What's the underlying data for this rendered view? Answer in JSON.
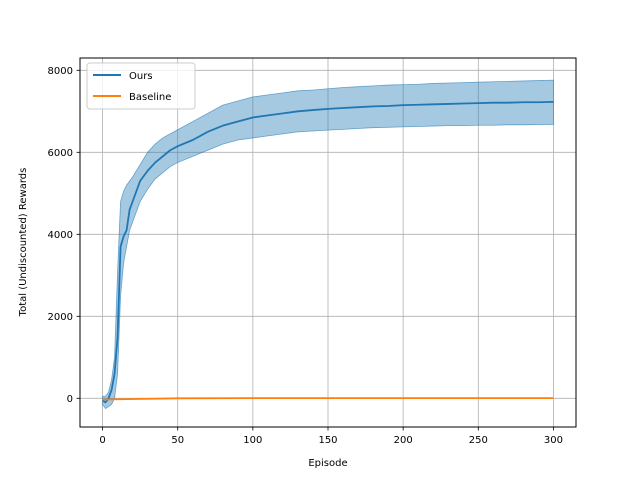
{
  "chart_data": {
    "type": "line",
    "xlabel": "Episode",
    "ylabel": "Total (Undiscounted) Rewards",
    "xlim": [
      -15,
      315
    ],
    "ylim": [
      -700,
      8300
    ],
    "xticks": [
      0,
      50,
      100,
      150,
      200,
      250,
      300
    ],
    "yticks": [
      0,
      2000,
      4000,
      6000,
      8000
    ],
    "grid": true,
    "legend_position": "upper-left",
    "series": [
      {
        "name": "Ours",
        "color": "#1f77b4",
        "band_color": "#1f77b4",
        "band_opacity": 0.4,
        "x": [
          0,
          2,
          4,
          6,
          8,
          10,
          12,
          14,
          16,
          18,
          20,
          25,
          30,
          35,
          40,
          45,
          50,
          60,
          70,
          80,
          90,
          100,
          110,
          120,
          130,
          140,
          150,
          160,
          170,
          180,
          190,
          200,
          210,
          220,
          230,
          240,
          250,
          260,
          270,
          280,
          290,
          300
        ],
        "values": [
          -50,
          -100,
          0,
          200,
          600,
          1500,
          3700,
          3950,
          4100,
          4600,
          4800,
          5300,
          5550,
          5750,
          5900,
          6050,
          6150,
          6300,
          6500,
          6650,
          6750,
          6850,
          6900,
          6950,
          7000,
          7030,
          7060,
          7080,
          7100,
          7120,
          7130,
          7150,
          7160,
          7170,
          7180,
          7190,
          7200,
          7210,
          7210,
          7220,
          7220,
          7230
        ],
        "lower": [
          -150,
          -250,
          -200,
          -150,
          0,
          600,
          2500,
          3300,
          3700,
          4100,
          4300,
          4800,
          5100,
          5350,
          5500,
          5650,
          5750,
          5900,
          6050,
          6200,
          6300,
          6350,
          6400,
          6450,
          6500,
          6520,
          6540,
          6560,
          6580,
          6600,
          6610,
          6620,
          6630,
          6640,
          6650,
          6650,
          6660,
          6660,
          6670,
          6670,
          6680,
          6680
        ],
        "upper": [
          50,
          50,
          150,
          450,
          1000,
          3100,
          4800,
          5050,
          5200,
          5300,
          5400,
          5700,
          6000,
          6200,
          6350,
          6450,
          6550,
          6750,
          6950,
          7150,
          7250,
          7350,
          7400,
          7450,
          7500,
          7520,
          7550,
          7580,
          7600,
          7620,
          7640,
          7650,
          7660,
          7680,
          7690,
          7700,
          7710,
          7720,
          7730,
          7740,
          7750,
          7760
        ]
      },
      {
        "name": "Baseline",
        "color": "#ff7f0e",
        "x": [
          0,
          50,
          100,
          150,
          200,
          250,
          300
        ],
        "values": [
          -30,
          0,
          5,
          5,
          5,
          5,
          5
        ]
      }
    ]
  }
}
